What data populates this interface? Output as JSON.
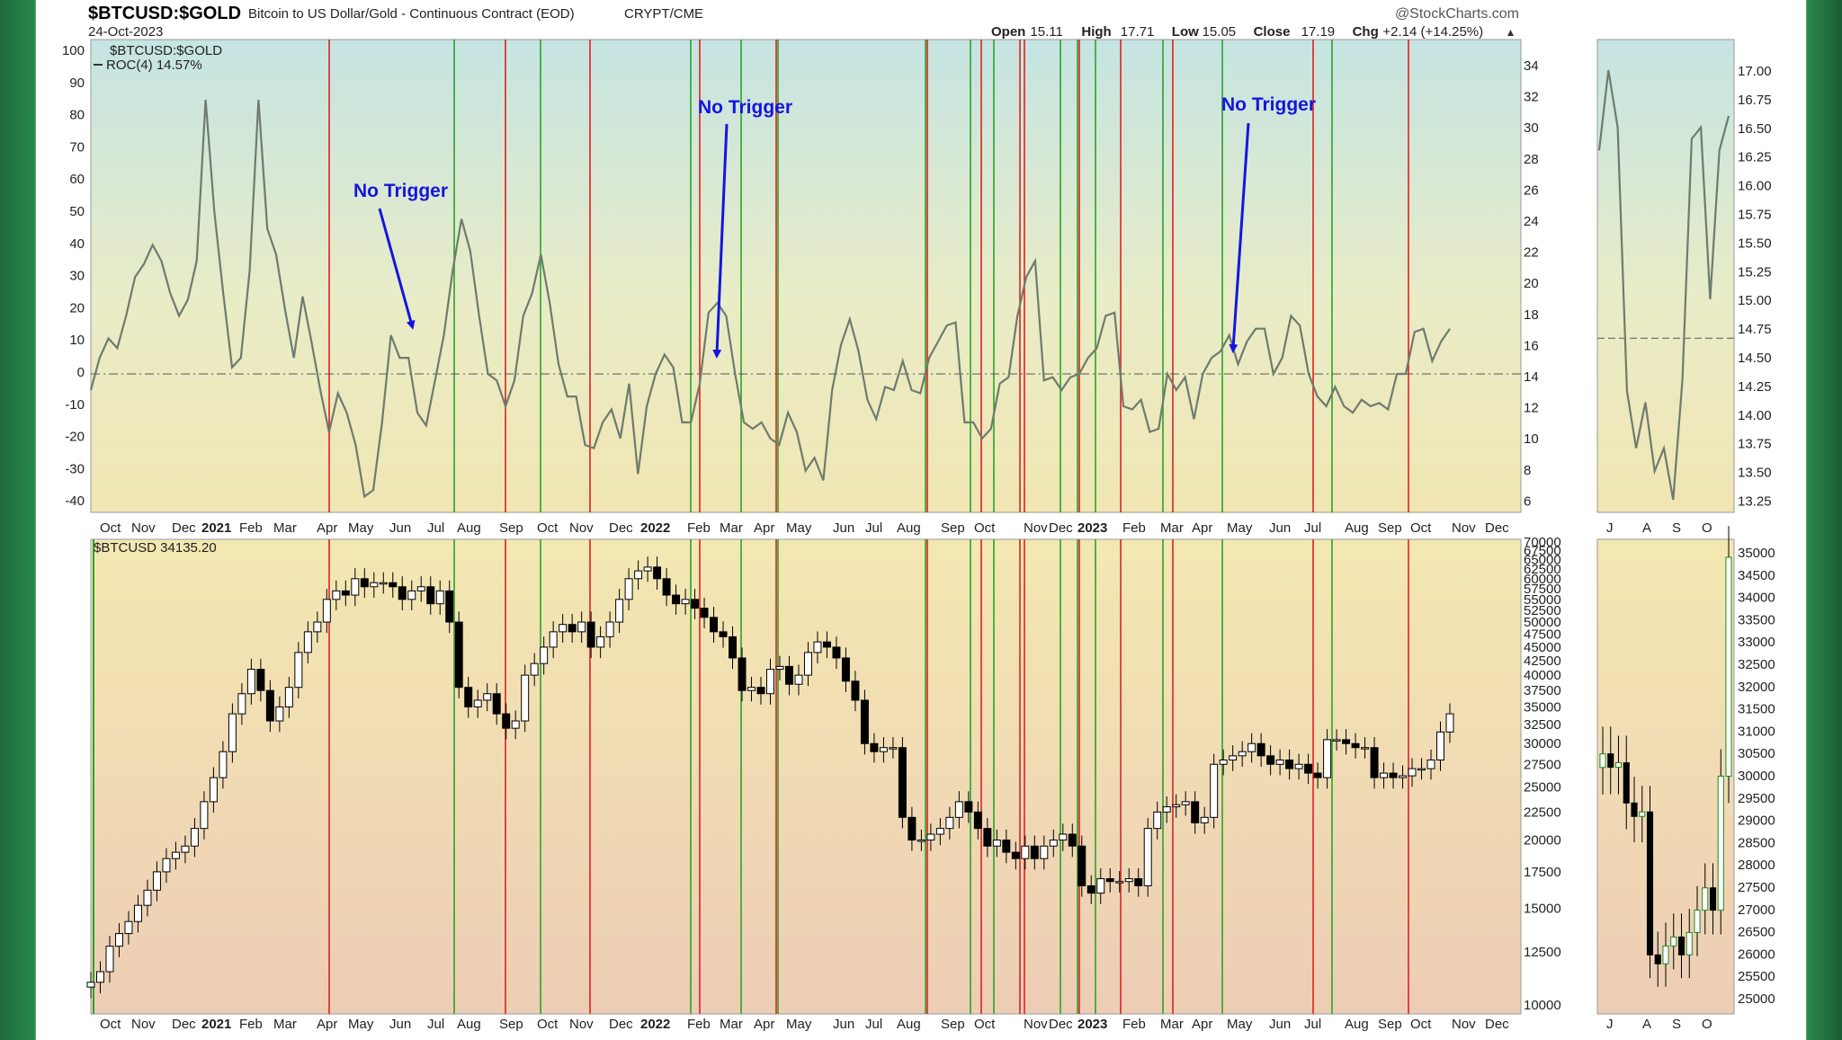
{
  "header": {
    "symbol": "$BTCUSD:$GOLD",
    "description": "Bitcoin to US Dollar/Gold - Continuous Contract (EOD)",
    "exchange": "CRYPT/CME",
    "date": "24-Oct-2023",
    "watermark": "@StockCharts.com",
    "ohlc": [
      {
        "label": "Open",
        "value": "15.11"
      },
      {
        "label": "High",
        "value": "17.71"
      },
      {
        "label": "Low",
        "value": "15.05"
      },
      {
        "label": "Close",
        "value": "17.19"
      },
      {
        "label": "Chg",
        "value": "+2.14 (+14.25%)"
      }
    ],
    "chg_arrow": "up-triangle"
  },
  "colors": {
    "green_frame": "#1f7a41",
    "red_line": "#e02020",
    "green_line": "#29a329",
    "roc_line": "#6e7b6e",
    "annotation": "#1515e0",
    "candle_up": "#ffffff",
    "candle_down": "#000000"
  },
  "chart_data": [
    {
      "type": "line",
      "name": "roc-panel",
      "legend": [
        "$BTCUSD:$GOLD",
        "ROC(4) 14.57%"
      ],
      "left_ticks": [
        "100",
        "90",
        "80",
        "70",
        "60",
        "50",
        "40",
        "30",
        "20",
        "10",
        "0",
        "-10",
        "-20",
        "-30",
        "-40"
      ],
      "right_ticks": [
        "34",
        "32",
        "30",
        "28",
        "26",
        "24",
        "22",
        "20",
        "18",
        "16",
        "14",
        "12",
        "10",
        "8",
        "6"
      ],
      "ylim": [
        -43,
        100
      ],
      "y_reference": 0,
      "x_range": [
        0,
        96
      ],
      "series": [
        {
          "name": "ROC(4)",
          "values": [
            -5,
            5,
            11,
            8,
            18,
            30,
            34,
            40,
            35,
            25,
            18,
            23,
            35,
            85,
            50,
            25,
            2,
            5,
            32,
            85,
            45,
            37,
            20,
            5,
            24,
            10,
            -5,
            -18,
            -6,
            -12,
            -22,
            -38,
            -36,
            -15,
            12,
            5,
            5,
            -12,
            -16,
            -2,
            12,
            32,
            48,
            38,
            18,
            0,
            -2,
            -10,
            -2,
            18,
            25,
            37,
            22,
            3,
            -7,
            -7,
            -22,
            -23,
            -15,
            -11,
            -20,
            -3,
            -31,
            -10,
            0,
            6,
            2,
            -15,
            -15,
            -3,
            19,
            22,
            18,
            0,
            -15,
            -17,
            -15,
            -20,
            -22,
            -12,
            -18,
            -30,
            -26,
            -33,
            -5,
            9,
            17,
            7,
            -8,
            -14,
            -4,
            -5,
            4,
            -5,
            -6,
            5,
            10,
            15,
            16,
            -15,
            -15,
            -20,
            -17,
            -3,
            -1,
            18,
            30,
            35,
            -2,
            -1,
            -5,
            -1,
            0,
            5,
            8,
            18,
            19,
            -10,
            -11,
            -8,
            -18,
            -17,
            0,
            -5,
            -1,
            -14,
            0,
            5,
            7,
            12,
            3,
            10,
            14,
            14,
            0,
            5,
            18,
            15,
            0,
            -7,
            -10,
            -4,
            -10,
            -12,
            -8,
            -10,
            -9,
            -11,
            0,
            0,
            13,
            14,
            4,
            10,
            14
          ],
          "note": "weekly ROC(4) values Oct 2020 - Oct 2023"
        }
      ],
      "annotations": [
        {
          "text": "No Trigger"
        },
        {
          "text": "No Trigger"
        },
        {
          "text": "No Trigger"
        }
      ]
    },
    {
      "type": "line",
      "name": "roc-inset",
      "right_ticks": [
        "17.00",
        "16.75",
        "16.50",
        "16.25",
        "16.00",
        "15.75",
        "15.50",
        "15.25",
        "15.00",
        "14.75",
        "14.50",
        "14.25",
        "14.00",
        "13.75",
        "13.50",
        "13.25"
      ],
      "x_ticks": [
        "J",
        "A",
        "S",
        "O"
      ],
      "series": [
        {
          "name": "$BTCUSD:$GOLD",
          "values": [
            16.3,
            17.0,
            16.5,
            14.2,
            13.7,
            14.1,
            13.5,
            13.7,
            13.25,
            14.3,
            16.4,
            16.5,
            15.0,
            16.3,
            16.6
          ]
        }
      ]
    },
    {
      "type": "candlestick",
      "name": "price-panel",
      "legend": "$BTCUSD 34135.20",
      "right_ticks": [
        "70000",
        "67500",
        "65000",
        "62500",
        "60000",
        "57500",
        "55000",
        "52500",
        "50000",
        "47500",
        "45000",
        "42500",
        "40000",
        "37500",
        "35000",
        "32500",
        "30000",
        "27500",
        "25000",
        "22500",
        "20000",
        "17500",
        "15000",
        "12500",
        "10000"
      ],
      "closes": [
        11000,
        11500,
        12800,
        13500,
        14200,
        15200,
        16200,
        17500,
        18500,
        19000,
        19500,
        21000,
        23500,
        26000,
        29000,
        34000,
        37000,
        41000,
        37500,
        33000,
        35000,
        38000,
        44000,
        48000,
        50000,
        55000,
        57000,
        56000,
        60000,
        58000,
        59000,
        59000,
        58000,
        55000,
        57000,
        58000,
        54000,
        57000,
        50000,
        38000,
        35000,
        36000,
        37000,
        34000,
        32000,
        33000,
        40000,
        42000,
        45000,
        48000,
        49500,
        48000,
        50000,
        45000,
        47000,
        50000,
        55000,
        60000,
        62000,
        63000,
        60000,
        56000,
        54000,
        55000,
        53000,
        51000,
        48000,
        47000,
        43000,
        37500,
        38000,
        37000,
        41000,
        41500,
        38500,
        40000,
        44000,
        46000,
        45000,
        43000,
        39000,
        36000,
        30000,
        29000,
        29500,
        29500,
        22000,
        20000,
        20000,
        20500,
        21000,
        22000,
        23500,
        22500,
        21000,
        19500,
        20000,
        19000,
        18500,
        19500,
        18500,
        19500,
        20000,
        20500,
        19500,
        16500,
        16000,
        17000,
        16800,
        16800,
        17000,
        16500,
        21000,
        22500,
        23000,
        23200,
        23500,
        21500,
        22000,
        27500,
        28000,
        28500,
        29000,
        30000,
        28500,
        27500,
        28000,
        27000,
        27500,
        26500,
        26000,
        30500,
        30500,
        30000,
        29500,
        29500,
        26000,
        26500,
        26000,
        26200,
        27000,
        27000,
        28000,
        31500,
        34000
      ],
      "inset": {
        "right_ticks": [
          "35000",
          "34500",
          "34000",
          "33500",
          "33000",
          "32500",
          "32000",
          "31500",
          "31000",
          "30500",
          "30000",
          "29500",
          "29000",
          "28500",
          "28000",
          "27500",
          "27000",
          "26500",
          "26000",
          "25500",
          "25000"
        ],
        "x_ticks": [
          "J",
          "A",
          "S",
          "O"
        ],
        "closes": [
          30500,
          30200,
          30300,
          29400,
          29100,
          29200,
          26000,
          25800,
          26200,
          26400,
          26000,
          26500,
          27000,
          27500,
          27000,
          30000,
          34900
        ]
      }
    }
  ],
  "x_axis": {
    "labels": [
      {
        "text": "Oct",
        "bold": false
      },
      {
        "text": "Nov",
        "bold": false
      },
      {
        "text": "Dec",
        "bold": false
      },
      {
        "text": "2021",
        "bold": true
      },
      {
        "text": "Feb",
        "bold": false
      },
      {
        "text": "Mar",
        "bold": false
      },
      {
        "text": "Apr",
        "bold": false
      },
      {
        "text": "May",
        "bold": false
      },
      {
        "text": "Jun",
        "bold": false
      },
      {
        "text": "Jul",
        "bold": false
      },
      {
        "text": "Aug",
        "bold": false
      },
      {
        "text": "Sep",
        "bold": false
      },
      {
        "text": "Oct",
        "bold": false
      },
      {
        "text": "Nov",
        "bold": false
      },
      {
        "text": "Dec",
        "bold": false
      },
      {
        "text": "2022",
        "bold": true
      },
      {
        "text": "Feb",
        "bold": false
      },
      {
        "text": "Mar",
        "bold": false
      },
      {
        "text": "Apr",
        "bold": false
      },
      {
        "text": "May",
        "bold": false
      },
      {
        "text": "Jun",
        "bold": false
      },
      {
        "text": "Jul",
        "bold": false
      },
      {
        "text": "Aug",
        "bold": false
      },
      {
        "text": "Sep",
        "bold": false
      },
      {
        "text": "Oct",
        "bold": false
      },
      {
        "text": "Nov",
        "bold": false
      },
      {
        "text": "Dec",
        "bold": false
      },
      {
        "text": "2023",
        "bold": true
      },
      {
        "text": "Feb",
        "bold": false
      },
      {
        "text": "Mar",
        "bold": false
      },
      {
        "text": "Apr",
        "bold": false
      },
      {
        "text": "May",
        "bold": false
      },
      {
        "text": "Jun",
        "bold": false
      },
      {
        "text": "Jul",
        "bold": false
      },
      {
        "text": "Aug",
        "bold": false
      },
      {
        "text": "Sep",
        "bold": false
      },
      {
        "text": "Oct",
        "bold": false
      },
      {
        "text": "Nov",
        "bold": false
      },
      {
        "text": "Dec",
        "bold": false
      }
    ],
    "vertical_markers": [
      {
        "color": "red"
      },
      {
        "color": "green"
      },
      {
        "color": "red"
      },
      {
        "color": "green"
      },
      {
        "color": "red"
      },
      {
        "color": "green"
      },
      {
        "color": "red"
      },
      {
        "color": "green"
      },
      {
        "color": "red"
      },
      {
        "color": "red"
      },
      {
        "color": "green"
      },
      {
        "color": "red"
      },
      {
        "color": "green"
      },
      {
        "color": "red"
      },
      {
        "color": "green"
      },
      {
        "color": "red"
      },
      {
        "color": "green"
      },
      {
        "color": "red"
      },
      {
        "color": "green"
      },
      {
        "color": "red"
      },
      {
        "color": "green"
      },
      {
        "color": "red"
      },
      {
        "color": "green"
      },
      {
        "color": "red"
      },
      {
        "color": "green"
      },
      {
        "color": "red"
      },
      {
        "color": "green"
      },
      {
        "color": "green"
      }
    ]
  }
}
